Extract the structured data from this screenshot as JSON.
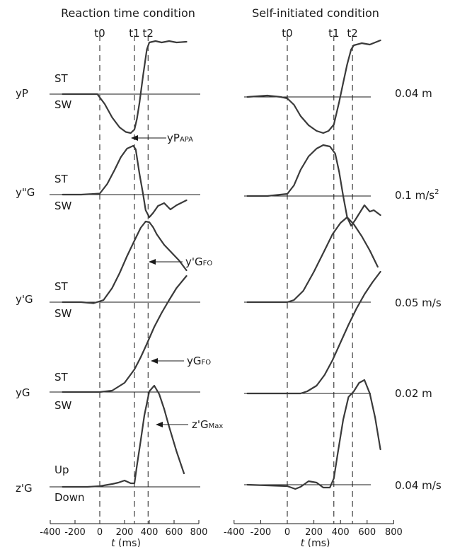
{
  "panel_titles": [
    "Reaction time condition",
    "Self-initiated condition"
  ],
  "marker_labels": [
    "t0",
    "t1",
    "t2"
  ],
  "row_labels": [
    "yP",
    "y\"G",
    "y'G",
    "yG",
    "z'G"
  ],
  "scale_labels": [
    "0.04 m",
    "0.1 m/s",
    "0.05 m/s",
    "0.02 m",
    "0.04 m/s"
  ],
  "scale_superscript": "2",
  "direction_labels": {
    "yP": [
      "ST",
      "SW"
    ],
    "y\"G": [
      "ST",
      "SW"
    ],
    "y'G": [
      "ST",
      "SW"
    ],
    "yG": [
      "ST",
      "SW"
    ],
    "z'G": [
      "Up",
      "Down"
    ]
  },
  "annotations": [
    {
      "base": "yP",
      "sub": "APA"
    },
    {
      "base": "y'G",
      "sub": "FO"
    },
    {
      "base": "yG",
      "sub": "FO"
    },
    {
      "base": "z'G",
      "sub": "Max"
    }
  ],
  "x_axis": {
    "label_italic": "t",
    "label_rest": " (ms)",
    "ticks": [
      "-400",
      "-200",
      "0",
      "200",
      "400",
      "600",
      "800"
    ]
  },
  "chart_data": {
    "type": "line",
    "xlabel": "t (ms)",
    "xlim": [
      -400,
      800
    ],
    "xticks": [
      -400,
      -200,
      0,
      200,
      400,
      600,
      800
    ],
    "unit_note": "Traces in arbitrary units relative to each row's baseline; vertical scale given by the scale labels.",
    "panels": [
      {
        "title": "Reaction time condition",
        "markers": {
          "t0": 0,
          "t1": 280,
          "t2": 390
        },
        "series": [
          {
            "name": "yP",
            "x": [
              -300,
              -150,
              -20,
              40,
              100,
              160,
              210,
              250,
              280,
              300,
              320,
              350,
              380,
              400,
              450,
              500,
              560,
              620,
              700
            ],
            "y": [
              0,
              0,
              0,
              -0.28,
              -0.66,
              -0.94,
              -1.07,
              -1.1,
              -1.0,
              -0.7,
              -0.26,
              0.54,
              1.26,
              1.46,
              1.5,
              1.46,
              1.5,
              1.46,
              1.48
            ]
          },
          {
            "name": "y\"G",
            "x": [
              -300,
              -150,
              0,
              60,
              120,
              170,
              220,
              270,
              290,
              320,
              350,
              370,
              400,
              430,
              470,
              520,
              570,
              620,
              700
            ],
            "y": [
              0,
              0,
              0.03,
              0.3,
              0.7,
              1.06,
              1.3,
              1.38,
              1.28,
              0.6,
              0.0,
              -0.44,
              -0.64,
              -0.52,
              -0.32,
              -0.24,
              -0.42,
              -0.3,
              -0.16
            ]
          },
          {
            "name": "y'G",
            "x": [
              -300,
              -150,
              -50,
              30,
              100,
              160,
              220,
              280,
              330,
              370,
              400,
              430,
              460,
              520,
              580,
              640,
              700
            ],
            "y": [
              0,
              0,
              -0.03,
              0.06,
              0.4,
              0.82,
              1.3,
              1.74,
              2.1,
              2.28,
              2.26,
              2.12,
              1.92,
              1.62,
              1.4,
              1.18,
              0.9
            ]
          },
          {
            "name": "yG",
            "x": [
              -300,
              -100,
              0,
              100,
              200,
              280,
              330,
              380,
              440,
              500,
              560,
              620,
              700
            ],
            "y": [
              0,
              0,
              0,
              0.04,
              0.26,
              0.64,
              0.98,
              1.36,
              1.84,
              2.24,
              2.6,
              2.94,
              3.28
            ]
          },
          {
            "name": "z'G",
            "x": [
              -300,
              -100,
              0,
              100,
              150,
              200,
              250,
              280,
              300,
              330,
              360,
              400,
              440,
              480,
              520,
              560,
              620,
              680
            ],
            "y": [
              0,
              0,
              0.02,
              0.08,
              0.12,
              0.18,
              0.1,
              0.1,
              0.6,
              1.3,
              2.02,
              2.7,
              2.86,
              2.62,
              2.2,
              1.7,
              1.0,
              0.38
            ]
          }
        ]
      },
      {
        "title": "Self-initiated condition",
        "markers": {
          "t0": 0,
          "t1": 350,
          "t2": 490
        },
        "series": [
          {
            "name": "yP",
            "x": [
              -300,
              -150,
              -50,
              0,
              50,
              100,
              160,
              220,
              270,
              310,
              350,
              390,
              420,
              450,
              480,
              500,
              560,
              620,
              700
            ],
            "y": [
              0,
              0.04,
              0,
              -0.04,
              -0.22,
              -0.54,
              -0.8,
              -0.96,
              -1.02,
              -0.96,
              -0.78,
              -0.14,
              0.4,
              0.92,
              1.34,
              1.46,
              1.52,
              1.48,
              1.6
            ]
          },
          {
            "name": "y\"G",
            "x": [
              -300,
              -150,
              0,
              50,
              100,
              160,
              220,
              270,
              320,
              360,
              390,
              420,
              450,
              480,
              510,
              540,
              580,
              620,
              650,
              700
            ],
            "y": [
              0,
              0,
              0.06,
              0.3,
              0.74,
              1.12,
              1.34,
              1.44,
              1.4,
              1.2,
              0.68,
              0.0,
              -0.6,
              -0.84,
              -0.68,
              -0.5,
              -0.26,
              -0.44,
              -0.4,
              -0.54
            ]
          },
          {
            "name": "y'G",
            "x": [
              -300,
              -150,
              0,
              50,
              120,
              200,
              280,
              340,
              400,
              450,
              500,
              560,
              620,
              680
            ],
            "y": [
              0,
              0,
              0,
              0.06,
              0.32,
              0.86,
              1.46,
              1.92,
              2.24,
              2.4,
              2.2,
              1.86,
              1.46,
              1.0
            ]
          },
          {
            "name": "yG",
            "x": [
              -300,
              -100,
              100,
              150,
              220,
              280,
              340,
              400,
              460,
              520,
              580,
              640,
              700
            ],
            "y": [
              0,
              0,
              0,
              0.06,
              0.22,
              0.52,
              0.94,
              1.44,
              1.94,
              2.4,
              2.8,
              3.14,
              3.44
            ]
          },
          {
            "name": "z'G",
            "x": [
              -300,
              -150,
              0,
              60,
              100,
              160,
              220,
              270,
              320,
              350,
              380,
              420,
              460,
              500,
              540,
              580,
              620,
              660,
              700
            ],
            "y": [
              0,
              -0.02,
              -0.04,
              -0.12,
              -0.06,
              0.1,
              0.06,
              -0.08,
              -0.08,
              0.18,
              0.9,
              1.84,
              2.48,
              2.64,
              2.88,
              2.96,
              2.58,
              1.9,
              1.0
            ]
          }
        ]
      }
    ]
  }
}
